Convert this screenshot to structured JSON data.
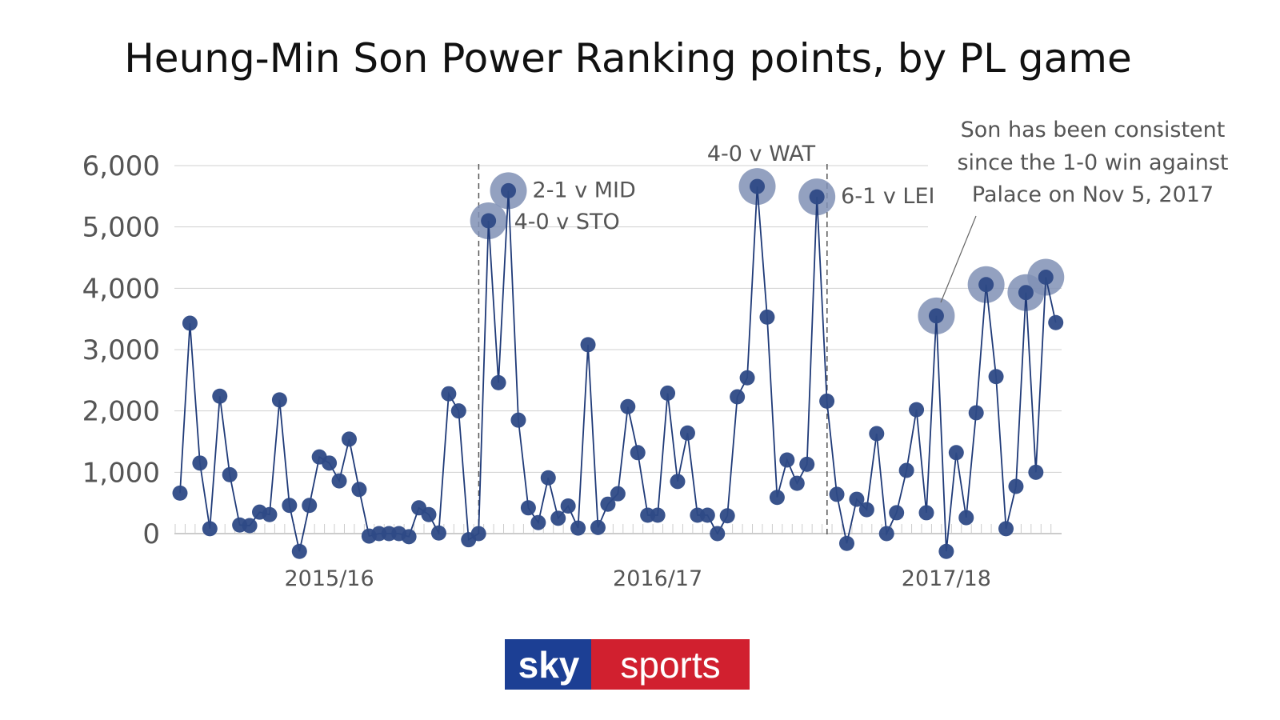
{
  "chart_data": {
    "type": "line",
    "title": "Heung-Min Son Power Ranking points, by PL game",
    "xlabel": "",
    "ylabel": "",
    "ylim": [
      -300,
      6000
    ],
    "yticks": [
      "0",
      "1,000",
      "2,000",
      "3,000",
      "4,000",
      "5,000",
      "6,000"
    ],
    "ytick_values": [
      0,
      1000,
      2000,
      3000,
      4000,
      5000,
      6000
    ],
    "grid": true,
    "seasons": [
      {
        "label": "2015/16",
        "values": [
          660,
          3430,
          1150,
          80,
          2240,
          960,
          140,
          130,
          350,
          310,
          2180,
          460,
          -290,
          460,
          1250,
          1150,
          860,
          1540,
          720,
          -40,
          0,
          0,
          0,
          -50,
          420,
          310,
          10,
          2280,
          2000,
          -100,
          0
        ]
      },
      {
        "label": "2016/17",
        "values": [
          5100,
          2460,
          5590,
          1850,
          420,
          180,
          910,
          250,
          450,
          90,
          3080,
          100,
          480,
          650,
          2070,
          1320,
          300,
          300,
          2290,
          850,
          1640,
          300,
          300,
          0,
          290,
          2230,
          2540,
          5660,
          3530,
          590,
          1200,
          820,
          1130,
          5490,
          2160
        ]
      },
      {
        "label": "2017/18",
        "values": [
          640,
          -160,
          560,
          390,
          1630,
          0,
          340,
          1030,
          2020,
          340,
          3550,
          -290,
          1320,
          260,
          1970,
          4060,
          2560,
          80,
          770,
          3930,
          1000,
          4180,
          3440
        ]
      }
    ],
    "annotations": [
      {
        "season": 1,
        "game": 0,
        "text": "4-0 v STO"
      },
      {
        "season": 1,
        "game": 2,
        "text": "2-1 v MID"
      },
      {
        "season": 1,
        "game": 27,
        "text": "4-0 v WAT"
      },
      {
        "season": 1,
        "game": 33,
        "text": "6-1 v LEI"
      }
    ],
    "highlighted_games": [
      {
        "season": 2,
        "game": 10
      },
      {
        "season": 2,
        "game": 15
      },
      {
        "season": 2,
        "game": 19
      },
      {
        "season": 2,
        "game": 21
      }
    ],
    "note": [
      "Son has been consistent",
      "since the 1-0 win against",
      "Palace on Nov 5, 2017"
    ],
    "colors": {
      "line": "#1f3a78",
      "marker": "#2e4a86",
      "highlight": "#8090b5",
      "grid": "#d0d0d0",
      "divider": "#555555"
    }
  },
  "logo": {
    "text_left": "sky",
    "text_right": "sports",
    "color_left": "#1c3f94",
    "color_right": "#d1202f"
  }
}
